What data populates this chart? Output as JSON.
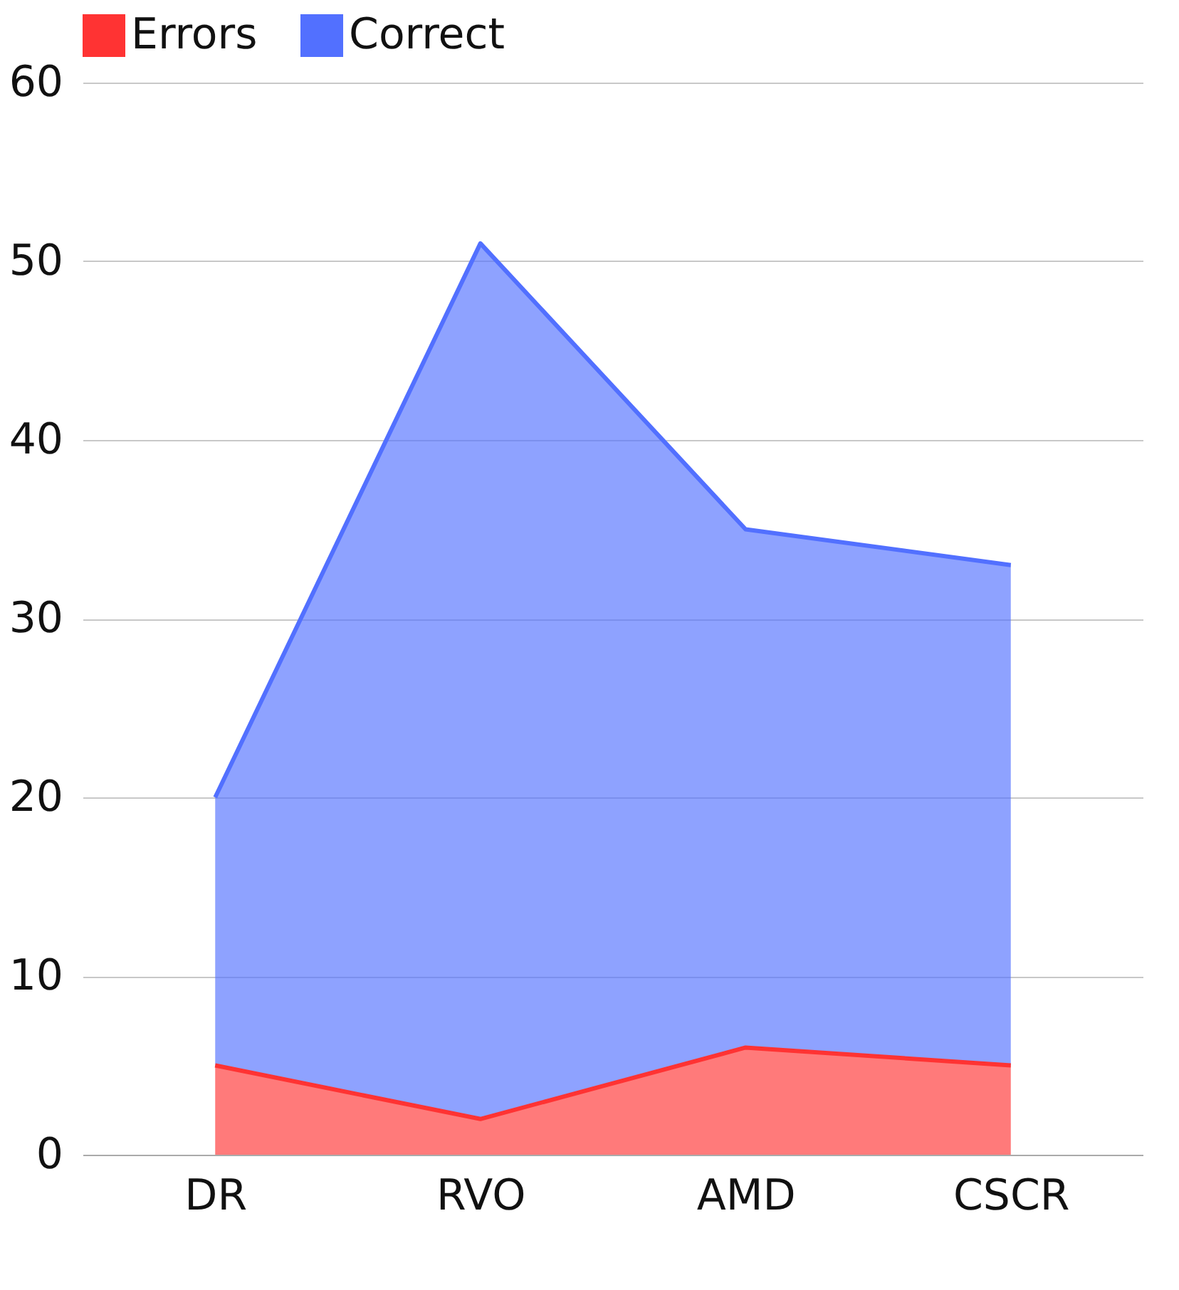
{
  "chart_data": {
    "type": "area",
    "stacked": true,
    "categories": [
      "DR",
      "RVO",
      "AMD",
      "CSCR"
    ],
    "series": [
      {
        "name": "Errors",
        "color": "#ff3333",
        "values": [
          5,
          2,
          6,
          5
        ]
      },
      {
        "name": "Correct",
        "color": "#5270ff",
        "values": [
          15,
          49,
          29,
          28
        ]
      }
    ],
    "ylim": [
      0,
      60
    ],
    "yticks": [
      0,
      10,
      20,
      30,
      40,
      50,
      60
    ],
    "grid": "y",
    "legend": "top"
  }
}
